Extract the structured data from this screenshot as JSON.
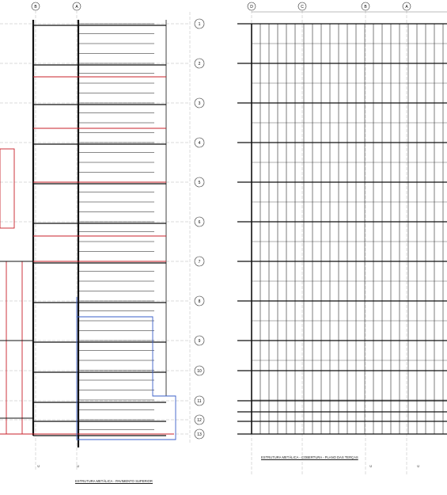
{
  "sheet": {
    "left_plan": {
      "title": "ESTRUTURA METÁLICA - PAVIMENTO SUPERIOR",
      "grid_columns": [
        "B",
        "A"
      ],
      "grid_rows": [
        "1",
        "2",
        "3",
        "4",
        "5",
        "6",
        "7",
        "8",
        "9",
        "10",
        "11",
        "12",
        "13"
      ]
    },
    "right_plan": {
      "title": "ESTRUTURA METÁLICA - COBERTURA - PLANO DAS TERÇAS",
      "grid_columns": [
        "D",
        "C",
        "B",
        "A"
      ]
    }
  },
  "colors": {
    "line": "#111111",
    "red_beam": "#c8202a",
    "blue_outline": "#3a5fc8",
    "grid": "#888888"
  }
}
